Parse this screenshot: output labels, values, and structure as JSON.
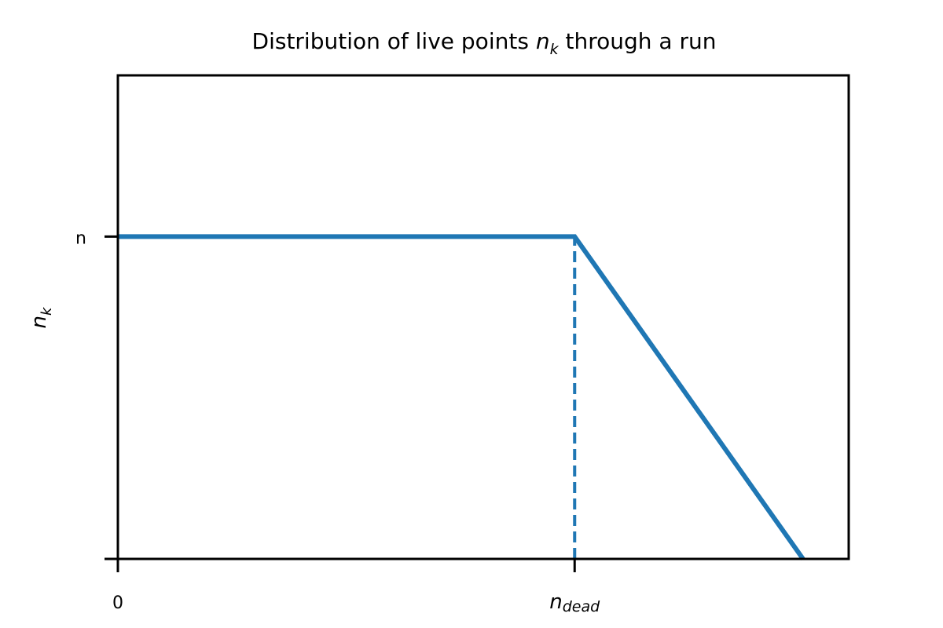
{
  "chart_data": {
    "type": "line",
    "title": {
      "prefix": "Distribution of live points ",
      "var_base": "n",
      "var_sub": "k",
      "suffix": " through a run"
    },
    "ylabel": {
      "base": "n",
      "sub": "k"
    },
    "xlim": [
      0,
      1.6
    ],
    "ylim": [
      0,
      1.5
    ],
    "x_ticks": [
      {
        "value": 0,
        "label_base": "0",
        "label_sub": ""
      },
      {
        "value": 1,
        "label_base": "n",
        "label_sub": "dead"
      }
    ],
    "y_ticks": [
      {
        "value": 0,
        "label": ""
      },
      {
        "value": 1,
        "label": "n"
      }
    ],
    "series": [
      {
        "x": [
          0,
          1,
          1.5
        ],
        "y": [
          1,
          1,
          0
        ],
        "color": "#1f77b4",
        "style": "solid"
      }
    ],
    "vlines": [
      {
        "x": 1,
        "y_from": 0,
        "y_to": 1,
        "color": "#1f77b4",
        "style": "dashed"
      }
    ],
    "grid": false,
    "legend": "none"
  }
}
